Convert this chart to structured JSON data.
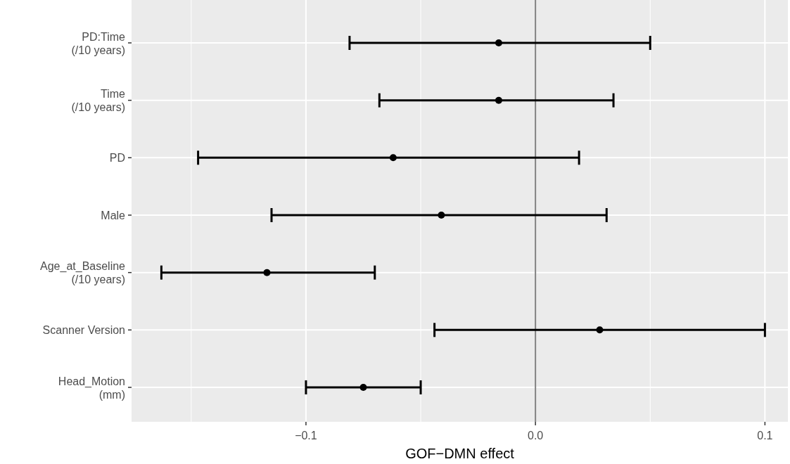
{
  "chart_data": {
    "type": "scatter",
    "orientation": "horizontal",
    "xlabel": "GOF−DMN effect",
    "categories": [
      "PD:Time\n(/10 years)",
      "Time\n(/10 years)",
      "PD",
      "Male",
      "Age_at_Baseline\n(/10 years)",
      "Scanner Version",
      "Head_Motion\n(mm)"
    ],
    "values": [
      -0.016,
      -0.016,
      -0.062,
      -0.041,
      -0.117,
      0.028,
      -0.075
    ],
    "errors": [
      [
        -0.081,
        0.05
      ],
      [
        -0.068,
        0.034
      ],
      [
        -0.147,
        0.019
      ],
      [
        -0.115,
        0.031
      ],
      [
        -0.163,
        -0.07
      ],
      [
        -0.044,
        0.1
      ],
      [
        -0.1,
        -0.05
      ]
    ],
    "color": "#000000",
    "marker": "circle",
    "xlim": [
      -0.176,
      0.11
    ],
    "xticks": [
      {
        "value": -0.1,
        "label": "−0.1"
      },
      {
        "value": 0,
        "label": "0.0"
      },
      {
        "value": 0.1,
        "label": "0.1"
      }
    ],
    "ref_lines": [
      {
        "axis": "x",
        "value": 0,
        "color": "#808080"
      }
    ],
    "grid": true
  }
}
